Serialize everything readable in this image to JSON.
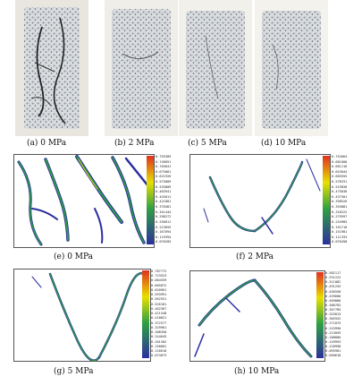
{
  "photo_captions": [
    "(a) 0 MPa",
    "(b) 2 MPa",
    "(c) 5 MPa",
    "(d) 10 MPa"
  ],
  "panels": [
    {
      "caption": "(e) 0 MPa",
      "scale": [
        "0.755309",
        "0.748051",
        "0.705841",
        "0.675081",
        "0.621926",
        "0.575009",
        "0.535809",
        "0.483941",
        "0.445011",
        "0.421801",
        "0.378481",
        "0.341444",
        "0.298272",
        "0.256811",
        "0.213655",
        "0.167094",
        "0.119394",
        "0.070205"
      ]
    },
    {
      "caption": "(f) 2 MPa",
      "scale": [
        "0.752664",
        "0.681000",
        "0.661116",
        "0.643044",
        "0.605555",
        "0.578331",
        "0.519838",
        "0.475038",
        "0.437501",
        "0.398526",
        "0.355881",
        "0.318222",
        "0.279597",
        "0.234985",
        "0.192710",
        "0.151981",
        "0.111333",
        "0.070458"
      ]
    },
    {
      "caption": "(g) 5 MPa",
      "scale": [
        "0.787772",
        "0.723523",
        "0.684559",
        "0.665872",
        "0.620961",
        "0.593991",
        "0.562551",
        "0.526181",
        "0.462367",
        "0.421548",
        "0.418821",
        "0.372577",
        "0.329961",
        "0.288350",
        "0.244645",
        "0.201302",
        "0.158001",
        "0.116610",
        "0.074073"
      ]
    },
    {
      "caption": "(h) 10 MPa",
      "scale": [
        "0.582117",
        "0.531222",
        "0.511082",
        "0.491255",
        "0.456558",
        "0.439680",
        "0.409880",
        "0.388783",
        "0.367785",
        "0.325813",
        "0.305552",
        "0.271075",
        "0.243990",
        "0.213059",
        "0.188806",
        "0.149993",
        "0.128998",
        "0.095981",
        "0.050618"
      ]
    }
  ],
  "colors": {
    "rock_light": "#d8dde0",
    "rock_dark": "#3a3f44",
    "crack_green": "#2ea043",
    "crack_blue": "#2b2f9e",
    "crack_yellow": "#e8e000",
    "crack_red": "#e03020"
  }
}
